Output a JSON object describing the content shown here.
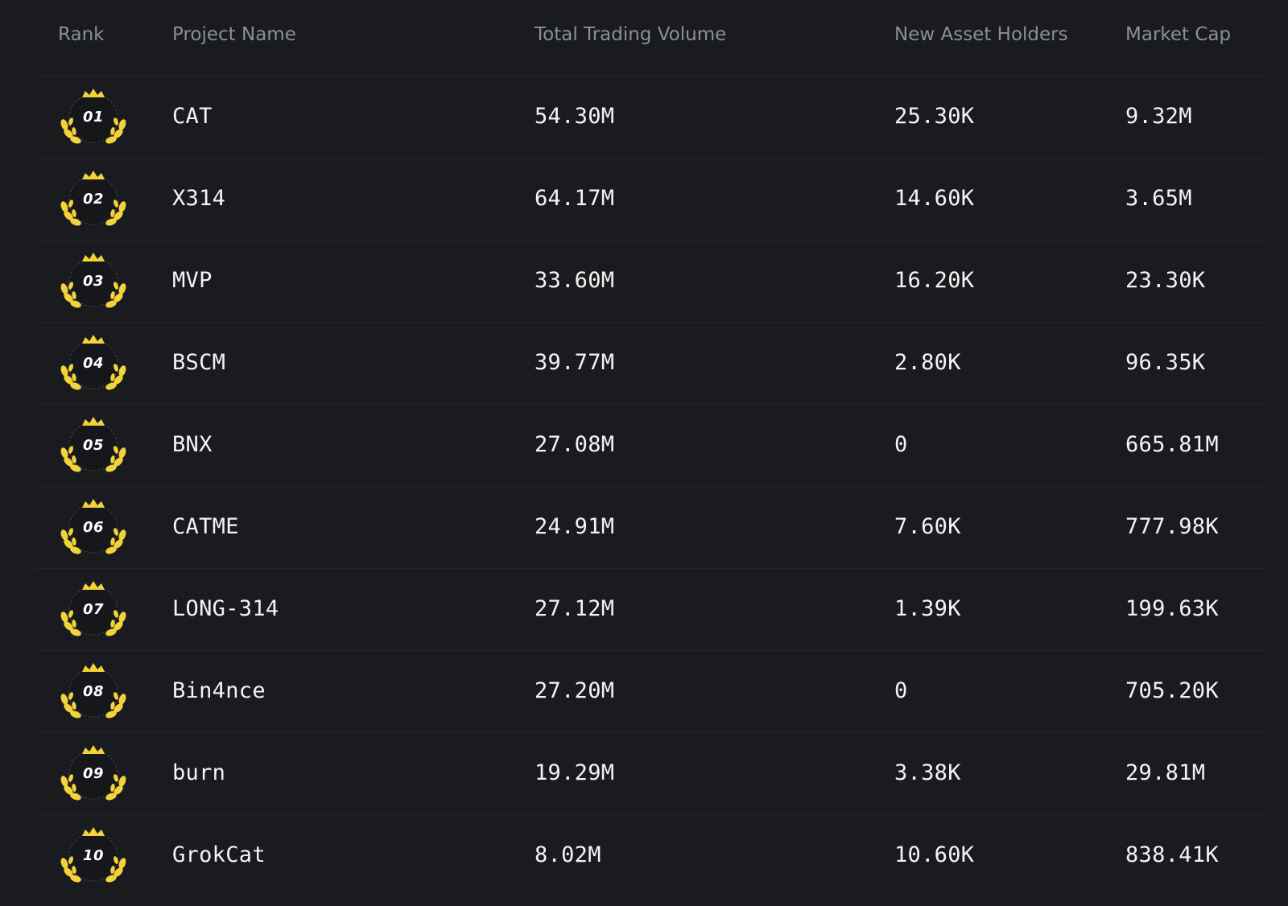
{
  "table": {
    "headers": {
      "rank": "Rank",
      "name": "Project Name",
      "volume": "Total Trading Volume",
      "holders": "New Asset Holders",
      "market_cap": "Market Cap"
    },
    "rows": [
      {
        "rank": "01",
        "name": "CAT",
        "volume": "54.30M",
        "holders": "25.30K",
        "market_cap": "9.32M"
      },
      {
        "rank": "02",
        "name": "X314",
        "volume": "64.17M",
        "holders": "14.60K",
        "market_cap": "3.65M"
      },
      {
        "rank": "03",
        "name": "MVP",
        "volume": "33.60M",
        "holders": "16.20K",
        "market_cap": "23.30K"
      },
      {
        "rank": "04",
        "name": "BSCM",
        "volume": "39.77M",
        "holders": "2.80K",
        "market_cap": "96.35K"
      },
      {
        "rank": "05",
        "name": "BNX",
        "volume": "27.08M",
        "holders": "0",
        "market_cap": "665.81M"
      },
      {
        "rank": "06",
        "name": "CATME",
        "volume": "24.91M",
        "holders": "7.60K",
        "market_cap": "777.98K"
      },
      {
        "rank": "07",
        "name": "LONG-314",
        "volume": "27.12M",
        "holders": "1.39K",
        "market_cap": "199.63K"
      },
      {
        "rank": "08",
        "name": "Bin4nce",
        "volume": "27.20M",
        "holders": "0",
        "market_cap": "705.20K"
      },
      {
        "rank": "09",
        "name": "burn",
        "volume": "19.29M",
        "holders": "3.38K",
        "market_cap": "29.81M"
      },
      {
        "rank": "10",
        "name": "GrokCat",
        "volume": "8.02M",
        "holders": "10.60K",
        "market_cap": "838.41K"
      }
    ]
  },
  "colors": {
    "background": "#1a1b1f",
    "badge_gold": "#f3d23a",
    "header_text": "#8b8f98"
  },
  "icons": {
    "rank_badge": "laurel-crown-badge-icon"
  }
}
